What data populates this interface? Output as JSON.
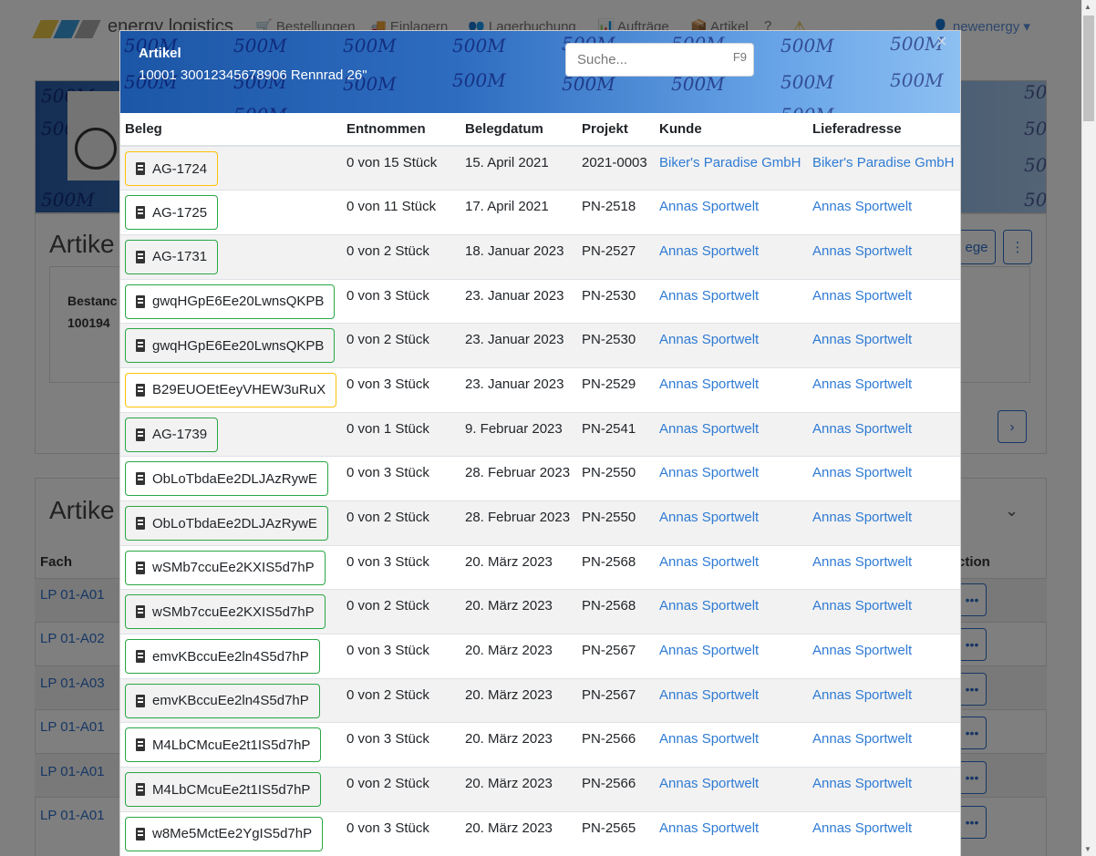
{
  "background": {
    "brand": "energy logistics",
    "logo_colors": [
      "#e8c547",
      "#3a9ad9",
      "#aaaaaa"
    ],
    "nav": [
      {
        "label": "Bestellungen",
        "icon": "cart-icon"
      },
      {
        "label": "Einlagern",
        "icon": "truck-icon"
      },
      {
        "label": "Lagerbuchung",
        "icon": "people-icon"
      },
      {
        "label": "Aufträge",
        "icon": "chart-icon"
      },
      {
        "label": "Artikel",
        "icon": "box-icon"
      },
      {
        "label": "?",
        "icon": "help-icon"
      },
      {
        "label": "⚠",
        "icon": "warning-icon"
      }
    ],
    "user": "newenergy",
    "banner_watermark": "500M",
    "card1_title": "Artike",
    "bestand_label": "Bestanc",
    "bestand_value": "100194",
    "belege_button": "ege",
    "card2_title": "Artike",
    "fach_header": "Fach",
    "action_header": "ction",
    "fach_rows": [
      "LP 01-A01",
      "LP 01-A02",
      "LP 01-A03",
      "LP 01-A01",
      "LP 01-A01",
      "LP 01-A01"
    ]
  },
  "modal": {
    "title": "Artikel",
    "subtitle": "10001 30012345678906 Rennrad 26\"",
    "watermark": "500M",
    "search": {
      "placeholder": "Suche...",
      "value": "",
      "hotkey": "F9"
    },
    "close_label": "×",
    "columns": [
      "Beleg",
      "Entnommen",
      "Belegdatum",
      "Projekt",
      "Kunde",
      "Lieferadresse"
    ],
    "rows": [
      {
        "beleg": "AG-1724",
        "status": "warning",
        "entnommen": "0 von 15 Stück",
        "datum": "15. April 2021",
        "projekt": "2021-0003",
        "kunde": "Biker's Paradise GmbH",
        "lieferadresse": "Biker's Paradise GmbH"
      },
      {
        "beleg": "AG-1725",
        "status": "success",
        "entnommen": "0 von 11 Stück",
        "datum": "17. April 2021",
        "projekt": "PN-2518",
        "kunde": "Annas Sportwelt",
        "lieferadresse": "Annas Sportwelt"
      },
      {
        "beleg": "AG-1731",
        "status": "success",
        "entnommen": "0 von 2 Stück",
        "datum": "18. Januar 2023",
        "projekt": "PN-2527",
        "kunde": "Annas Sportwelt",
        "lieferadresse": "Annas Sportwelt"
      },
      {
        "beleg": "gwqHGpE6Ee20LwnsQKPB",
        "status": "success",
        "entnommen": "0 von 3 Stück",
        "datum": "23. Januar 2023",
        "projekt": "PN-2530",
        "kunde": "Annas Sportwelt",
        "lieferadresse": "Annas Sportwelt"
      },
      {
        "beleg": "gwqHGpE6Ee20LwnsQKPB",
        "status": "success",
        "entnommen": "0 von 2 Stück",
        "datum": "23. Januar 2023",
        "projekt": "PN-2530",
        "kunde": "Annas Sportwelt",
        "lieferadresse": "Annas Sportwelt"
      },
      {
        "beleg": "B29EUOEtEeyVHEW3uRuX",
        "status": "warning",
        "entnommen": "0 von 3 Stück",
        "datum": "23. Januar 2023",
        "projekt": "PN-2529",
        "kunde": "Annas Sportwelt",
        "lieferadresse": "Annas Sportwelt"
      },
      {
        "beleg": "AG-1739",
        "status": "success",
        "entnommen": "0 von 1 Stück",
        "datum": "9. Februar 2023",
        "projekt": "PN-2541",
        "kunde": "Annas Sportwelt",
        "lieferadresse": "Annas Sportwelt"
      },
      {
        "beleg": "ObLoTbdaEe2DLJAzRywE",
        "status": "success",
        "entnommen": "0 von 3 Stück",
        "datum": "28. Februar 2023",
        "projekt": "PN-2550",
        "kunde": "Annas Sportwelt",
        "lieferadresse": "Annas Sportwelt"
      },
      {
        "beleg": "ObLoTbdaEe2DLJAzRywE",
        "status": "success",
        "entnommen": "0 von 2 Stück",
        "datum": "28. Februar 2023",
        "projekt": "PN-2550",
        "kunde": "Annas Sportwelt",
        "lieferadresse": "Annas Sportwelt"
      },
      {
        "beleg": "wSMb7ccuEe2KXIS5d7hP",
        "status": "success",
        "entnommen": "0 von 3 Stück",
        "datum": "20. März 2023",
        "projekt": "PN-2568",
        "kunde": "Annas Sportwelt",
        "lieferadresse": "Annas Sportwelt"
      },
      {
        "beleg": "wSMb7ccuEe2KXIS5d7hP",
        "status": "success",
        "entnommen": "0 von 2 Stück",
        "datum": "20. März 2023",
        "projekt": "PN-2568",
        "kunde": "Annas Sportwelt",
        "lieferadresse": "Annas Sportwelt"
      },
      {
        "beleg": "emvKBccuEe2ln4S5d7hP",
        "status": "success",
        "entnommen": "0 von 3 Stück",
        "datum": "20. März 2023",
        "projekt": "PN-2567",
        "kunde": "Annas Sportwelt",
        "lieferadresse": "Annas Sportwelt"
      },
      {
        "beleg": "emvKBccuEe2ln4S5d7hP",
        "status": "success",
        "entnommen": "0 von 2 Stück",
        "datum": "20. März 2023",
        "projekt": "PN-2567",
        "kunde": "Annas Sportwelt",
        "lieferadresse": "Annas Sportwelt"
      },
      {
        "beleg": "M4LbCMcuEe2t1IS5d7hP",
        "status": "success",
        "entnommen": "0 von 3 Stück",
        "datum": "20. März 2023",
        "projekt": "PN-2566",
        "kunde": "Annas Sportwelt",
        "lieferadresse": "Annas Sportwelt"
      },
      {
        "beleg": "M4LbCMcuEe2t1IS5d7hP",
        "status": "success",
        "entnommen": "0 von 2 Stück",
        "datum": "20. März 2023",
        "projekt": "PN-2566",
        "kunde": "Annas Sportwelt",
        "lieferadresse": "Annas Sportwelt"
      },
      {
        "beleg": "w8Me5MctEe2YgIS5d7hP",
        "status": "success",
        "entnommen": "0 von 3 Stück",
        "datum": "20. März 2023",
        "projekt": "PN-2565",
        "kunde": "Annas Sportwelt",
        "lieferadresse": "Annas Sportwelt"
      }
    ]
  },
  "colors": {
    "success": "#28a745",
    "warning": "#ffc107",
    "link": "#2f7bd4"
  }
}
